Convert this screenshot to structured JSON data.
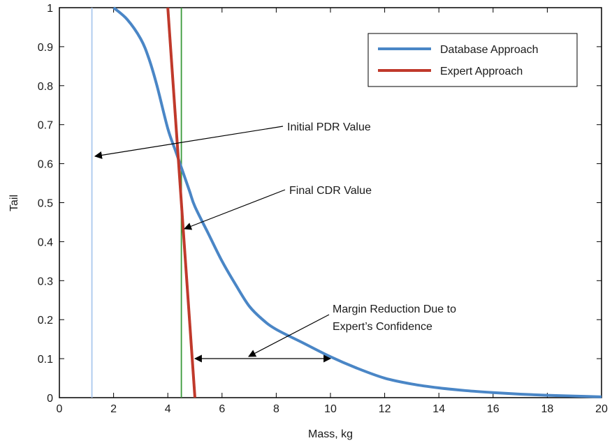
{
  "chart_data": {
    "type": "line",
    "xlabel": "Mass, kg",
    "ylabel": "Tail",
    "xlim": [
      0,
      20
    ],
    "ylim": [
      0,
      1
    ],
    "xticks": [
      0,
      2,
      4,
      6,
      8,
      10,
      12,
      14,
      16,
      18,
      20
    ],
    "yticks": [
      0,
      0.1,
      0.2,
      0.3,
      0.4,
      0.5,
      0.6,
      0.7,
      0.8,
      0.9,
      1
    ],
    "xtick_labels": [
      "0",
      "2",
      "4",
      "6",
      "8",
      "10",
      "12",
      "14",
      "16",
      "18",
      "20"
    ],
    "ytick_labels": [
      "0",
      "0.1",
      "0.2",
      "0.3",
      "0.4",
      "0.5",
      "0.6",
      "0.7",
      "0.8",
      "0.9",
      "1"
    ],
    "grid": false,
    "legend_position": "top-right",
    "series": [
      {
        "name": "Database Approach",
        "color": "#4a86c6",
        "x": [
          2.0,
          2.5,
          3.0,
          3.3,
          3.6,
          4.0,
          4.3,
          4.5,
          4.8,
          5.0,
          5.5,
          6.0,
          6.5,
          7.0,
          7.5,
          8.0,
          9.0,
          10.0,
          11.0,
          12.0,
          13.0,
          14.0,
          15.0,
          16.0,
          17.0,
          18.0,
          19.0,
          20.0
        ],
        "y": [
          1.0,
          0.97,
          0.92,
          0.87,
          0.8,
          0.69,
          0.63,
          0.59,
          0.53,
          0.49,
          0.42,
          0.35,
          0.29,
          0.235,
          0.2,
          0.175,
          0.14,
          0.105,
          0.075,
          0.05,
          0.035,
          0.025,
          0.018,
          0.013,
          0.009,
          0.006,
          0.004,
          0.002
        ]
      },
      {
        "name": "Expert Approach",
        "color": "#c0392b",
        "x": [
          4.0,
          5.0
        ],
        "y": [
          1.0,
          0.0
        ]
      }
    ],
    "vertical_lines": [
      {
        "x": 1.2,
        "color": "#a9c8ee"
      },
      {
        "x": 4.5,
        "color": "#3a9a3a"
      }
    ],
    "annotations": [
      {
        "text": "Initial PDR Value"
      },
      {
        "text": "Final CDR Value"
      },
      {
        "lines": [
          "Margin Reduction Due to",
          "Expert’s Confidence"
        ]
      }
    ]
  }
}
